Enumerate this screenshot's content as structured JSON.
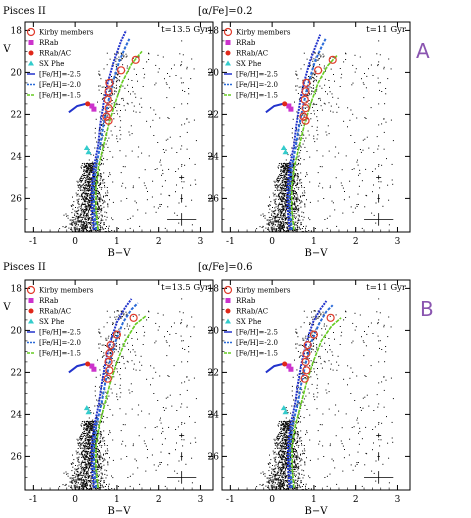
{
  "figure": {
    "panel_letters": [
      "A",
      "B"
    ],
    "rows": [
      {
        "galaxy": "Pisces II",
        "alpha_label": "[α/Fe]=0.2"
      },
      {
        "galaxy": "Pisces II",
        "alpha_label": "[α/Fe]=0.6"
      }
    ]
  },
  "chart_data": [
    {
      "type": "scatter",
      "row": 0,
      "col": 0,
      "age_label": "t=13.5 Gyr",
      "xlabel": "B−V",
      "ylabel": "V",
      "xlim": [
        -1.2,
        3.3
      ],
      "ylim": [
        27.6,
        17.6
      ],
      "y_inverted": true,
      "xticks": [
        -1,
        0,
        1,
        2,
        3
      ],
      "yticks": [
        18,
        20,
        22,
        24,
        26
      ],
      "legend": [
        "Kirby members",
        "RRab",
        "RRab/AC",
        "SX Phe",
        "[Fe/H]=-2.5",
        "[Fe/H]=-2.0",
        "[Fe/H]=-1.5"
      ],
      "colors": {
        "kirby": "#e03a2a",
        "rrab": "#cc33cc",
        "rrab_ac": "#e0281a",
        "sxphe": "#33cccc",
        "iso_m25": "#2233cc",
        "iso_m20": "#2a6ad8",
        "iso_m15": "#66cc22"
      },
      "kirby": [
        [
          0.82,
          20.5
        ],
        [
          0.8,
          20.9
        ],
        [
          0.78,
          21.3
        ],
        [
          0.8,
          21.7
        ],
        [
          0.75,
          22.1
        ],
        [
          0.8,
          22.3
        ],
        [
          1.1,
          19.9
        ],
        [
          1.45,
          19.4
        ]
      ],
      "rrab": [
        [
          0.4,
          21.6
        ],
        [
          0.45,
          21.75
        ]
      ],
      "rrab_ac": [
        [
          0.3,
          21.5
        ]
      ],
      "sxphe": [
        [
          0.28,
          23.6
        ],
        [
          0.32,
          23.8
        ]
      ],
      "isochrones": [
        {
          "feh": -2.5,
          "rgb": [
            [
              0.45,
              27.5
            ],
            [
              0.4,
              26.5
            ],
            [
              0.4,
              25.5
            ],
            [
              0.45,
              24.5
            ],
            [
              0.55,
              23.5
            ],
            [
              0.6,
              22.5
            ],
            [
              0.68,
              21.5
            ],
            [
              0.78,
              20.5
            ],
            [
              0.92,
              19.5
            ],
            [
              1.1,
              18.5
            ],
            [
              1.22,
              18.0
            ]
          ],
          "hb": [
            [
              -0.15,
              21.9
            ],
            [
              0.05,
              21.6
            ],
            [
              0.25,
              21.5
            ],
            [
              0.45,
              21.55
            ]
          ]
        },
        {
          "feh": -2.0,
          "rgb": [
            [
              0.5,
              27.5
            ],
            [
              0.45,
              26.5
            ],
            [
              0.44,
              25.5
            ],
            [
              0.5,
              24.5
            ],
            [
              0.6,
              23.5
            ],
            [
              0.68,
              22.5
            ],
            [
              0.78,
              21.5
            ],
            [
              0.9,
              20.5
            ],
            [
              1.05,
              19.5
            ],
            [
              1.2,
              18.8
            ],
            [
              1.3,
              18.4
            ]
          ]
        },
        {
          "feh": -1.5,
          "rgb": [
            [
              0.55,
              27.5
            ],
            [
              0.5,
              26.5
            ],
            [
              0.5,
              25.5
            ],
            [
              0.56,
              24.5
            ],
            [
              0.68,
              23.5
            ],
            [
              0.8,
              22.5
            ],
            [
              0.95,
              21.5
            ],
            [
              1.12,
              20.5
            ],
            [
              1.35,
              19.6
            ],
            [
              1.6,
              19.0
            ]
          ]
        }
      ],
      "error_bars": [
        [
          26,
          0.03,
          0.1
        ],
        [
          25,
          0.06,
          0.05
        ],
        [
          27,
          0.35,
          0.15
        ]
      ]
    },
    {
      "type": "scatter",
      "row": 0,
      "col": 1,
      "age_label": "t=11 Gyr",
      "xlabel": "B−V",
      "ylabel": "",
      "xlim": [
        -1.2,
        3.3
      ],
      "ylim": [
        27.6,
        17.6
      ],
      "y_inverted": true,
      "xticks": [
        -1,
        0,
        1,
        2,
        3
      ],
      "yticks": [
        18,
        20,
        22,
        24,
        26
      ],
      "legend": [
        "Kirby members",
        "RRab",
        "RRab/AC",
        "SX Phe",
        "[Fe/H]=-2.5",
        "[Fe/H]=-2.0",
        "[Fe/H]=-1.5"
      ],
      "colors": {
        "kirby": "#e03a2a",
        "rrab": "#cc33cc",
        "rrab_ac": "#e0281a",
        "sxphe": "#33cccc",
        "iso_m25": "#2233cc",
        "iso_m20": "#2a6ad8",
        "iso_m15": "#66cc22"
      },
      "kirby": [
        [
          0.82,
          20.5
        ],
        [
          0.8,
          20.9
        ],
        [
          0.78,
          21.3
        ],
        [
          0.8,
          21.7
        ],
        [
          0.75,
          22.1
        ],
        [
          0.8,
          22.3
        ],
        [
          1.1,
          19.9
        ],
        [
          1.45,
          19.4
        ]
      ],
      "rrab": [
        [
          0.4,
          21.6
        ],
        [
          0.45,
          21.75
        ]
      ],
      "rrab_ac": [
        [
          0.3,
          21.5
        ]
      ],
      "sxphe": [
        [
          0.28,
          23.6
        ],
        [
          0.32,
          23.8
        ]
      ],
      "isochrones": [
        {
          "feh": -2.5,
          "rgb": [
            [
              0.42,
              27.5
            ],
            [
              0.37,
              26.5
            ],
            [
              0.37,
              25.5
            ],
            [
              0.42,
              24.5
            ],
            [
              0.52,
              23.5
            ],
            [
              0.58,
              22.5
            ],
            [
              0.66,
              21.5
            ],
            [
              0.76,
              20.5
            ],
            [
              0.9,
              19.5
            ],
            [
              1.05,
              18.7
            ],
            [
              1.15,
              18.2
            ]
          ],
          "hb": [
            [
              -0.15,
              21.9
            ],
            [
              0.05,
              21.6
            ],
            [
              0.25,
              21.5
            ],
            [
              0.45,
              21.55
            ]
          ]
        },
        {
          "feh": -2.0,
          "rgb": [
            [
              0.47,
              27.5
            ],
            [
              0.42,
              26.5
            ],
            [
              0.42,
              25.5
            ],
            [
              0.47,
              24.5
            ],
            [
              0.57,
              23.5
            ],
            [
              0.65,
              22.5
            ],
            [
              0.75,
              21.5
            ],
            [
              0.87,
              20.5
            ],
            [
              1.02,
              19.5
            ],
            [
              1.18,
              18.8
            ],
            [
              1.28,
              18.4
            ]
          ]
        },
        {
          "feh": -1.5,
          "rgb": [
            [
              0.52,
              27.5
            ],
            [
              0.47,
              26.5
            ],
            [
              0.47,
              25.5
            ],
            [
              0.53,
              24.5
            ],
            [
              0.65,
              23.5
            ],
            [
              0.77,
              22.5
            ],
            [
              0.92,
              21.5
            ],
            [
              1.1,
              20.5
            ],
            [
              1.32,
              19.7
            ],
            [
              1.55,
              19.2
            ]
          ]
        }
      ],
      "error_bars": [
        [
          26,
          0.03,
          0.1
        ],
        [
          25,
          0.06,
          0.05
        ],
        [
          27,
          0.35,
          0.15
        ]
      ]
    },
    {
      "type": "scatter",
      "row": 1,
      "col": 0,
      "age_label": "t=13.5 Gyr",
      "xlabel": "B−V",
      "ylabel": "V",
      "xlim": [
        -1.2,
        3.3
      ],
      "ylim": [
        27.6,
        17.6
      ],
      "y_inverted": true,
      "xticks": [
        -1,
        0,
        1,
        2,
        3
      ],
      "yticks": [
        18,
        20,
        22,
        24,
        26
      ],
      "legend": [
        "Kirby members",
        "RRab",
        "RRab/AC",
        "SX Phe",
        "[Fe/H]=-2.5",
        "[Fe/H]=-2.0",
        "[Fe/H]=-1.5"
      ],
      "colors": {
        "kirby": "#e03a2a",
        "rrab": "#cc33cc",
        "rrab_ac": "#e0281a",
        "sxphe": "#33cccc",
        "iso_m25": "#2233cc",
        "iso_m20": "#2a6ad8",
        "iso_m15": "#66cc22"
      },
      "kirby": [
        [
          0.85,
          20.7
        ],
        [
          0.82,
          21.1
        ],
        [
          0.8,
          21.5
        ],
        [
          0.82,
          21.9
        ],
        [
          0.78,
          22.3
        ],
        [
          1.0,
          20.2
        ],
        [
          1.4,
          19.4
        ]
      ],
      "rrab": [
        [
          0.4,
          21.7
        ],
        [
          0.45,
          21.85
        ]
      ],
      "rrab_ac": [
        [
          0.3,
          21.6
        ]
      ],
      "sxphe": [
        [
          0.28,
          23.7
        ],
        [
          0.32,
          23.9
        ]
      ],
      "isochrones": [
        {
          "feh": -2.5,
          "rgb": [
            [
              0.45,
              27.5
            ],
            [
              0.4,
              26.5
            ],
            [
              0.4,
              25.5
            ],
            [
              0.46,
              24.5
            ],
            [
              0.57,
              23.5
            ],
            [
              0.64,
              22.5
            ],
            [
              0.73,
              21.5
            ],
            [
              0.85,
              20.5
            ],
            [
              1.0,
              19.6
            ],
            [
              1.2,
              18.9
            ],
            [
              1.35,
              18.5
            ]
          ],
          "hb": [
            [
              -0.15,
              22.0
            ],
            [
              0.05,
              21.7
            ],
            [
              0.25,
              21.6
            ],
            [
              0.45,
              21.65
            ]
          ]
        },
        {
          "feh": -2.0,
          "rgb": [
            [
              0.5,
              27.5
            ],
            [
              0.45,
              26.5
            ],
            [
              0.45,
              25.5
            ],
            [
              0.51,
              24.5
            ],
            [
              0.63,
              23.5
            ],
            [
              0.72,
              22.5
            ],
            [
              0.83,
              21.5
            ],
            [
              0.97,
              20.5
            ],
            [
              1.15,
              19.6
            ],
            [
              1.35,
              19.0
            ],
            [
              1.5,
              18.7
            ]
          ]
        },
        {
          "feh": -1.5,
          "rgb": [
            [
              0.55,
              27.5
            ],
            [
              0.5,
              26.5
            ],
            [
              0.5,
              25.5
            ],
            [
              0.58,
              24.5
            ],
            [
              0.71,
              23.5
            ],
            [
              0.84,
              22.5
            ],
            [
              1.0,
              21.5
            ],
            [
              1.2,
              20.5
            ],
            [
              1.45,
              19.7
            ],
            [
              1.7,
              19.3
            ]
          ]
        }
      ],
      "error_bars": [
        [
          26,
          0.03,
          0.1
        ],
        [
          25,
          0.06,
          0.05
        ],
        [
          27,
          0.35,
          0.15
        ]
      ]
    },
    {
      "type": "scatter",
      "row": 1,
      "col": 1,
      "age_label": "t=11 Gyr",
      "xlabel": "B−V",
      "ylabel": "",
      "xlim": [
        -1.2,
        3.3
      ],
      "ylim": [
        27.6,
        17.6
      ],
      "y_inverted": true,
      "xticks": [
        -1,
        0,
        1,
        2,
        3
      ],
      "yticks": [
        18,
        20,
        22,
        24,
        26
      ],
      "legend": [
        "Kirby members",
        "RRab",
        "RRab/AC",
        "SX Phe",
        "[Fe/H]=-2.5",
        "[Fe/H]=-2.0",
        "[Fe/H]=-1.5"
      ],
      "colors": {
        "kirby": "#e03a2a",
        "rrab": "#cc33cc",
        "rrab_ac": "#e0281a",
        "sxphe": "#33cccc",
        "iso_m25": "#2233cc",
        "iso_m20": "#2a6ad8",
        "iso_m15": "#66cc22"
      },
      "kirby": [
        [
          0.85,
          20.7
        ],
        [
          0.82,
          21.1
        ],
        [
          0.8,
          21.5
        ],
        [
          0.82,
          21.9
        ],
        [
          0.78,
          22.3
        ],
        [
          1.0,
          20.2
        ],
        [
          1.4,
          19.4
        ]
      ],
      "rrab": [
        [
          0.4,
          21.7
        ],
        [
          0.45,
          21.85
        ]
      ],
      "rrab_ac": [
        [
          0.3,
          21.6
        ]
      ],
      "sxphe": [
        [
          0.28,
          23.7
        ],
        [
          0.32,
          23.9
        ]
      ],
      "isochrones": [
        {
          "feh": -2.5,
          "rgb": [
            [
              0.42,
              27.5
            ],
            [
              0.38,
              26.5
            ],
            [
              0.38,
              25.5
            ],
            [
              0.44,
              24.5
            ],
            [
              0.55,
              23.5
            ],
            [
              0.62,
              22.5
            ],
            [
              0.71,
              21.5
            ],
            [
              0.83,
              20.5
            ],
            [
              0.98,
              19.6
            ],
            [
              1.15,
              19.0
            ],
            [
              1.3,
              18.6
            ]
          ],
          "hb": [
            [
              -0.15,
              22.0
            ],
            [
              0.05,
              21.7
            ],
            [
              0.25,
              21.6
            ],
            [
              0.45,
              21.65
            ]
          ]
        },
        {
          "feh": -2.0,
          "rgb": [
            [
              0.47,
              27.5
            ],
            [
              0.43,
              26.5
            ],
            [
              0.43,
              25.5
            ],
            [
              0.49,
              24.5
            ],
            [
              0.61,
              23.5
            ],
            [
              0.7,
              22.5
            ],
            [
              0.81,
              21.5
            ],
            [
              0.95,
              20.5
            ],
            [
              1.12,
              19.7
            ],
            [
              1.3,
              19.1
            ],
            [
              1.45,
              18.8
            ]
          ]
        },
        {
          "feh": -1.5,
          "rgb": [
            [
              0.52,
              27.5
            ],
            [
              0.48,
              26.5
            ],
            [
              0.48,
              25.5
            ],
            [
              0.56,
              24.5
            ],
            [
              0.69,
              23.5
            ],
            [
              0.82,
              22.5
            ],
            [
              0.98,
              21.5
            ],
            [
              1.18,
              20.5
            ],
            [
              1.42,
              19.8
            ],
            [
              1.65,
              19.4
            ]
          ]
        }
      ],
      "error_bars": [
        [
          26,
          0.03,
          0.1
        ],
        [
          25,
          0.06,
          0.05
        ],
        [
          27,
          0.35,
          0.15
        ]
      ]
    }
  ]
}
